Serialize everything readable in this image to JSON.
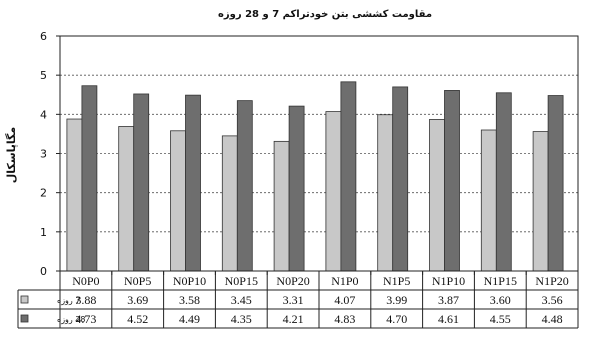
{
  "chart_data": {
    "type": "bar",
    "title": "مقاومت کششی بتن خودتراکم 7 و 28 روزه",
    "ylabel": "مگاپاسکال",
    "xlabel": "",
    "ylim": [
      0,
      6
    ],
    "yticks": [
      0,
      1,
      2,
      3,
      4,
      5,
      6
    ],
    "grid": "horizontal-dashed",
    "legend": "data-table-left",
    "categories": [
      "N0P0",
      "N0P5",
      "N0P10",
      "N0P15",
      "N0P20",
      "N1P0",
      "N1P5",
      "N1P10",
      "N1P15",
      "N1P20"
    ],
    "series": [
      {
        "name": "7 روزه",
        "color": "#c8c8c8",
        "values": [
          3.88,
          3.69,
          3.58,
          3.45,
          3.31,
          4.07,
          3.99,
          3.87,
          3.6,
          3.56
        ],
        "labels": [
          "3.88",
          "3.69",
          "3.58",
          "3.45",
          "3.31",
          "4.07",
          "3.99",
          "3.87",
          "3.60",
          "3.56"
        ]
      },
      {
        "name": "28 روزه",
        "color": "#6e6e6e",
        "values": [
          4.73,
          4.52,
          4.49,
          4.35,
          4.21,
          4.83,
          4.7,
          4.61,
          4.55,
          4.48
        ],
        "labels": [
          "4.73",
          "4.52",
          "4.49",
          "4.35",
          "4.21",
          "4.83",
          "4.70",
          "4.61",
          "4.55",
          "4.48"
        ]
      }
    ]
  }
}
